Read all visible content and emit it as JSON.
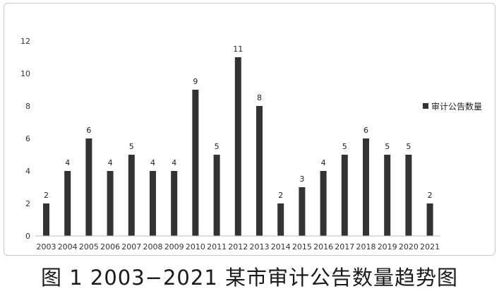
{
  "chart_data": {
    "type": "bar",
    "categories": [
      "2003",
      "2004",
      "2005",
      "2006",
      "2007",
      "2008",
      "2009",
      "2010",
      "2011",
      "2012",
      "2013",
      "2014",
      "2015",
      "2016",
      "2017",
      "2018",
      "2019",
      "2020",
      "2021"
    ],
    "series": [
      {
        "name": "审计公告数量",
        "values": [
          2,
          4,
          6,
          4,
          5,
          4,
          4,
          9,
          5,
          11,
          8,
          2,
          3,
          4,
          5,
          6,
          5,
          5,
          2
        ]
      }
    ],
    "ylim": [
      0,
      12
    ],
    "yticks": [
      0,
      2,
      4,
      6,
      8,
      10,
      12
    ],
    "grid": false,
    "legend_position": "right",
    "bar_color": "#333333",
    "data_labels": true
  },
  "caption": "图 1 2003−2021 某市审计公告数量趋势图"
}
